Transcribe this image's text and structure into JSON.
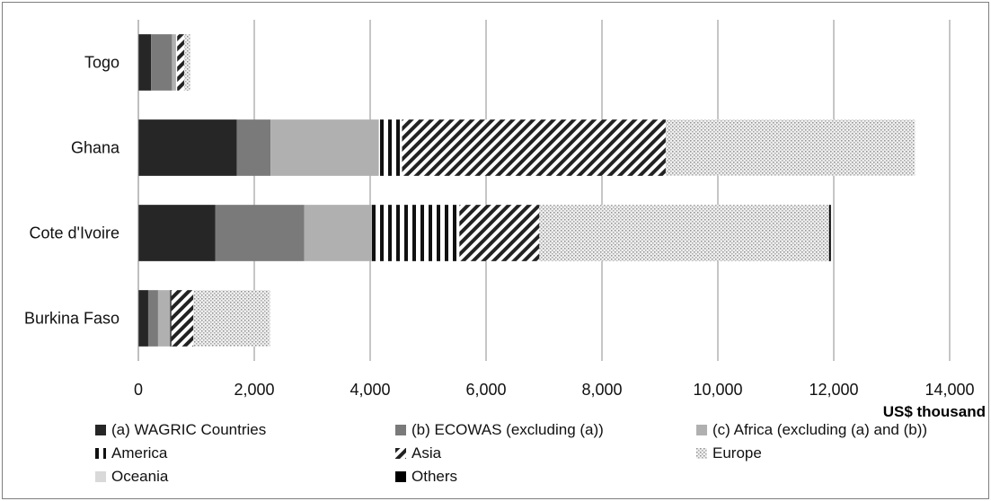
{
  "chart_data": {
    "type": "bar",
    "orientation": "horizontal",
    "stacked": true,
    "categories": [
      "Togo",
      "Ghana",
      "Cote d'Ivoire",
      "Burkina Faso"
    ],
    "series": [
      {
        "name": "(a) WAGRIC Countries",
        "color": "#262626",
        "pattern": "solid",
        "values": [
          220,
          1700,
          1330,
          170
        ]
      },
      {
        "name": "(b) ECOWAS (excluding (a))",
        "color": "#7a7a7a",
        "pattern": "solid",
        "values": [
          360,
          580,
          1530,
          170
        ]
      },
      {
        "name": "(c) Africa (excluding (a) and (b))",
        "color": "#b0b0b0",
        "pattern": "solid",
        "values": [
          70,
          1870,
          1170,
          210
        ]
      },
      {
        "name": "America",
        "color": "#111111",
        "pattern": "vertical-stripes",
        "values": [
          20,
          400,
          1510,
          20
        ]
      },
      {
        "name": "Asia",
        "color": "#222222",
        "pattern": "diagonal-stripes",
        "values": [
          120,
          4550,
          1380,
          380
        ]
      },
      {
        "name": "Europe",
        "color": "#c8c8c8",
        "pattern": "dots",
        "values": [
          110,
          4300,
          5000,
          1320
        ]
      },
      {
        "name": "Oceania",
        "color": "#d9d9d9",
        "pattern": "solid",
        "values": [
          0,
          0,
          0,
          0
        ]
      },
      {
        "name": "Others",
        "color": "#000000",
        "pattern": "solid",
        "values": [
          0,
          0,
          30,
          0
        ]
      }
    ],
    "xlim": [
      0,
      14000
    ],
    "xticks": [
      "0",
      "2,000",
      "4,000",
      "6,000",
      "8,000",
      "10,000",
      "12,000",
      "14,000"
    ],
    "xlabel": "US$ thousand",
    "ylabel": "",
    "title": "",
    "grid": "vertical",
    "legend_position": "bottom"
  }
}
